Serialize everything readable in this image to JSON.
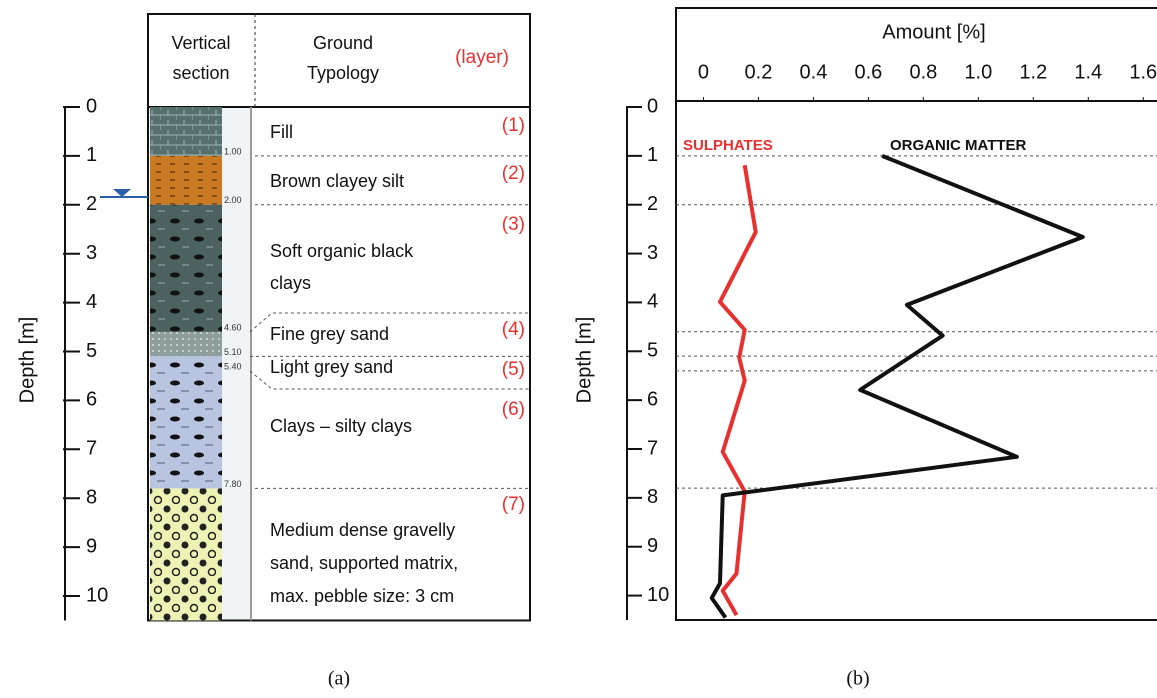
{
  "column": {
    "header": {
      "section": [
        "Vertical",
        "section"
      ],
      "typology": [
        "Ground",
        "Typology"
      ],
      "layer": "(layer)"
    },
    "ylabel": "Depth [m]",
    "ylim": [
      0,
      10.5
    ],
    "yticks": [
      0,
      1,
      2,
      3,
      4,
      5,
      6,
      7,
      8,
      9,
      10
    ],
    "boundaries": [
      {
        "value": 1,
        "label": "1.00"
      },
      {
        "value": 2,
        "label": "2.00"
      },
      {
        "value": 4.6,
        "label": "4.60"
      },
      {
        "value": 5.1,
        "label": "5.10"
      },
      {
        "value": 5.4,
        "label": "5.40"
      },
      {
        "value": 7.8,
        "label": "7.80"
      }
    ],
    "layers": [
      {
        "id": "(1)",
        "name": [
          "Fill"
        ]
      },
      {
        "id": "(2)",
        "name": [
          "Brown clayey silt"
        ]
      },
      {
        "id": "(3)",
        "name": [
          "Soft organic black",
          "clays"
        ]
      },
      {
        "id": "(4)",
        "name": [
          "Fine grey sand"
        ]
      },
      {
        "id": "(5)",
        "name": [
          "Light grey sand"
        ]
      },
      {
        "id": "(6)",
        "name": [
          "Clays – silty clays"
        ]
      },
      {
        "id": "(7)",
        "name": [
          "Medium dense gravelly",
          "sand, supported matrix,",
          "max. pebble size: 3 cm"
        ]
      }
    ]
  },
  "chart_data": {
    "type": "line",
    "xlabel": "Amount [%]",
    "ylabel": "Depth [m]",
    "xlim": [
      -0.1,
      1.65
    ],
    "xticks": [
      0,
      0.2,
      0.4,
      0.6,
      0.8,
      {
        "value": 1,
        "label": "1.0"
      },
      1.2,
      1.4,
      1.6
    ],
    "ylim": [
      0,
      10.5
    ],
    "yticks": [
      0,
      1,
      2,
      3,
      4,
      5,
      6,
      7,
      8,
      9,
      10
    ],
    "series": [
      {
        "name": "SULPHATES",
        "color": "#e8312f",
        "y": [
          1.19,
          2.56,
          3.99,
          4.56,
          5.13,
          5.6,
          7.06,
          7.87,
          9.55,
          9.9,
          10.4
        ],
        "values": [
          0.15,
          0.19,
          0.06,
          0.15,
          0.13,
          0.15,
          0.07,
          0.15,
          0.12,
          0.07,
          0.12
        ]
      },
      {
        "name": "ORGANIC MATTER",
        "color": "#111111",
        "y": [
          1,
          2.66,
          4.05,
          4.68,
          5.79,
          7.16,
          7.95,
          9.75,
          10.05,
          10.45
        ],
        "values": [
          0.65,
          1.38,
          0.74,
          0.87,
          0.57,
          1.14,
          0.07,
          0.06,
          0.03,
          0.08
        ]
      }
    ]
  },
  "captions": [
    "(a)",
    "(b)"
  ]
}
